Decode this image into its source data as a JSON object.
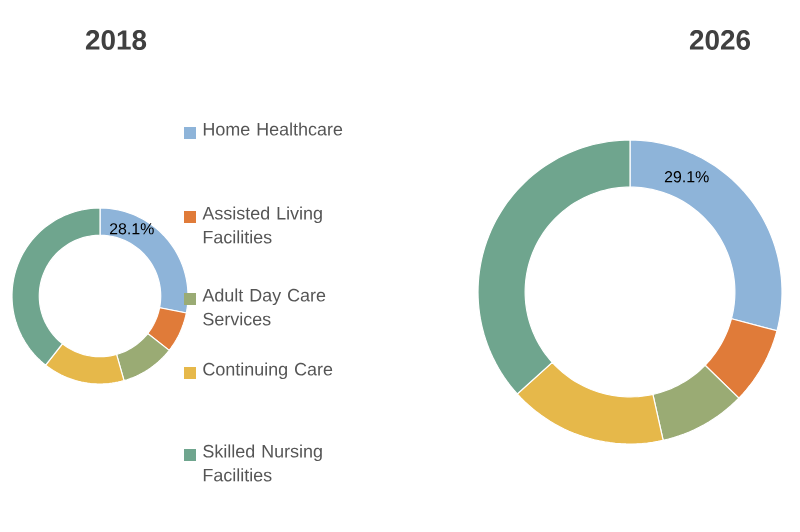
{
  "chart_data": [
    {
      "type": "donut",
      "title": "2018",
      "categories": [
        "Home Healthcare",
        "Assisted Living Facilities",
        "Adult Day Care Services",
        "Continuing Care",
        "Skilled Nursing Facilities"
      ],
      "values": [
        28.1,
        7.5,
        10,
        15,
        39.4
      ],
      "colors": [
        "#8eb4d9",
        "#e07b39",
        "#9aab74",
        "#e6b84a",
        "#6fa58e"
      ],
      "value_labels": [
        "28.1%",
        null,
        null,
        null,
        null
      ],
      "legend": "right"
    },
    {
      "type": "donut",
      "title": "2026",
      "categories": [
        null,
        null,
        null,
        null,
        null
      ],
      "values": [
        29.1,
        8.2,
        9.2,
        16.8,
        36.7
      ],
      "colors": [
        "#8eb4d9",
        "#e07b39",
        "#9aab74",
        "#e6b84a",
        "#6fa58e"
      ],
      "value_labels": [
        "29.1%",
        null,
        null,
        null,
        null
      ]
    }
  ]
}
